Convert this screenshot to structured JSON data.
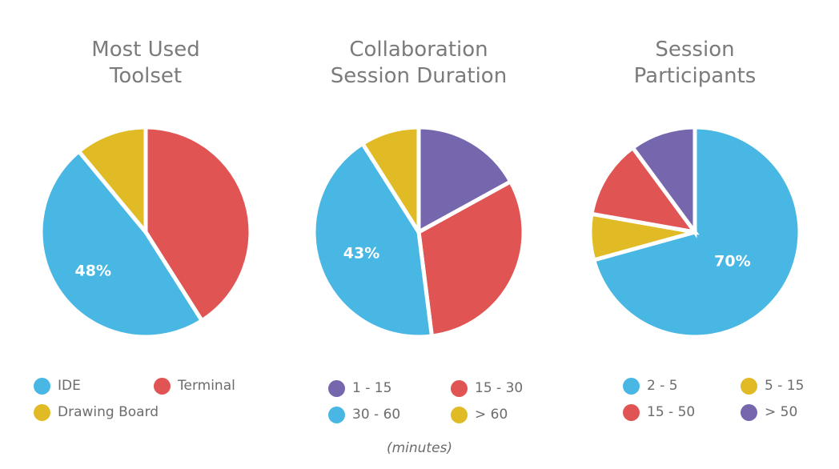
{
  "chart_data": [
    {
      "type": "pie",
      "title": "Most Used\nToolset",
      "start_angle_deg": 0,
      "slices": [
        {
          "label": "Terminal",
          "value": 41,
          "color": "#e05454"
        },
        {
          "label": "IDE",
          "value": 48,
          "color": "#49b7e3"
        },
        {
          "label": "Drawing Board",
          "value": 11,
          "color": "#e0bb26"
        }
      ],
      "slice_labels": [
        {
          "text": "48%",
          "slice": "IDE"
        }
      ],
      "legend": [
        {
          "label": "IDE",
          "color": "#49b7e3"
        },
        {
          "label": "Terminal",
          "color": "#e05454"
        },
        {
          "label": "Drawing Board",
          "color": "#e0bb26"
        }
      ]
    },
    {
      "type": "pie",
      "title": "Collaboration\nSession Duration",
      "start_angle_deg": 0,
      "slices": [
        {
          "label": "1 - 15",
          "value": 17,
          "color": "#7566ad"
        },
        {
          "label": "15 - 30",
          "value": 31,
          "color": "#e05454"
        },
        {
          "label": "30 - 60",
          "value": 43,
          "color": "#49b7e3"
        },
        {
          "label": "> 60",
          "value": 9,
          "color": "#e0bb26"
        }
      ],
      "slice_labels": [
        {
          "text": "43%",
          "slice": "30 - 60"
        }
      ],
      "legend": [
        {
          "label": "1 - 15",
          "color": "#7566ad"
        },
        {
          "label": "15 - 30",
          "color": "#e05454"
        },
        {
          "label": "30 - 60",
          "color": "#49b7e3"
        },
        {
          "label": "> 60",
          "color": "#e0bb26"
        }
      ],
      "note": "(minutes)"
    },
    {
      "type": "pie",
      "title": "Session\nParticipants",
      "start_angle_deg": 0,
      "slices": [
        {
          "label": "2 - 5",
          "value": 70,
          "color": "#49b7e3"
        },
        {
          "label": "5 - 15",
          "value": 7,
          "color": "#e0bb26"
        },
        {
          "label": "15 - 50",
          "value": 12,
          "color": "#e05454"
        },
        {
          "label": "> 50",
          "value": 10,
          "color": "#7566ad"
        }
      ],
      "slice_labels": [
        {
          "text": "70%",
          "slice": "2 - 5"
        }
      ],
      "legend": [
        {
          "label": "2 - 5",
          "color": "#49b7e3"
        },
        {
          "label": "5 - 15",
          "color": "#e0bb26"
        },
        {
          "label": "15 - 50",
          "color": "#e05454"
        },
        {
          "label": "> 50",
          "color": "#7566ad"
        }
      ]
    }
  ]
}
